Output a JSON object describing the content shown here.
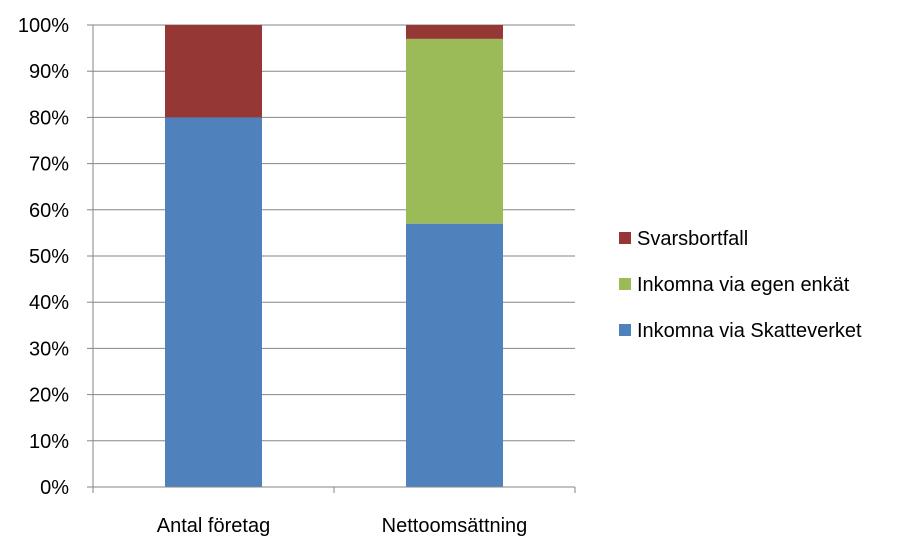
{
  "chart_data": {
    "type": "bar",
    "stacked": true,
    "normalized": true,
    "categories": [
      "Antal företag",
      "Nettoomsättning"
    ],
    "series": [
      {
        "name": "Inkomna via Skatteverket",
        "values": [
          80,
          57
        ],
        "color": "#4f81bd"
      },
      {
        "name": "Inkomna via egen enkät",
        "values": [
          0,
          40
        ],
        "color": "#9bbb59"
      },
      {
        "name": "Svarsbortfall",
        "values": [
          20,
          3
        ],
        "color": "#953735"
      }
    ],
    "title": "",
    "xlabel": "",
    "ylabel": "",
    "ylim": [
      0,
      100
    ],
    "yticks": [
      "0%",
      "10%",
      "20%",
      "30%",
      "40%",
      "50%",
      "60%",
      "70%",
      "80%",
      "90%",
      "100%"
    ],
    "grid": true,
    "legend": {
      "position": "right",
      "order": [
        "Svarsbortfall",
        "Inkomna via egen enkät",
        "Inkomna via Skatteverket"
      ]
    }
  }
}
